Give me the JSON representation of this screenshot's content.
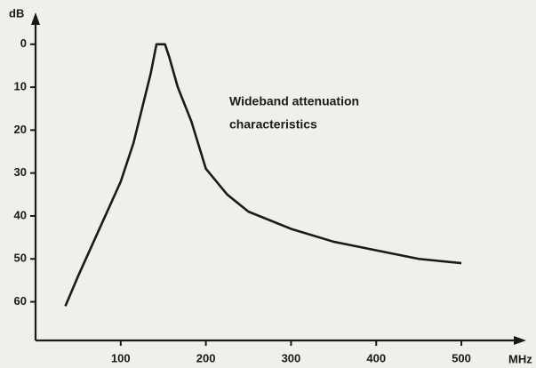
{
  "chart_data": {
    "type": "line",
    "y_label": "dB",
    "x_label": "MHz",
    "annotation": [
      "Wideband attenuation",
      "characteristics"
    ],
    "x": [
      35,
      50,
      75,
      100,
      115,
      125,
      135,
      142,
      152,
      157,
      167,
      183,
      200,
      225,
      250,
      300,
      350,
      400,
      450,
      500
    ],
    "series": [
      {
        "color": "#1a1a1a",
        "values": [
          61,
          54,
          43,
          32,
          23,
          15,
          7,
          0,
          0,
          3,
          10,
          18,
          29,
          35,
          39,
          43,
          46,
          48,
          50,
          51
        ]
      }
    ],
    "xlim": [
      0,
      573
    ],
    "xticks": [
      100,
      200,
      300,
      400,
      500
    ],
    "ylim": [
      69,
      -7
    ],
    "yticks": [
      0,
      10,
      20,
      30,
      40,
      50,
      60
    ]
  }
}
